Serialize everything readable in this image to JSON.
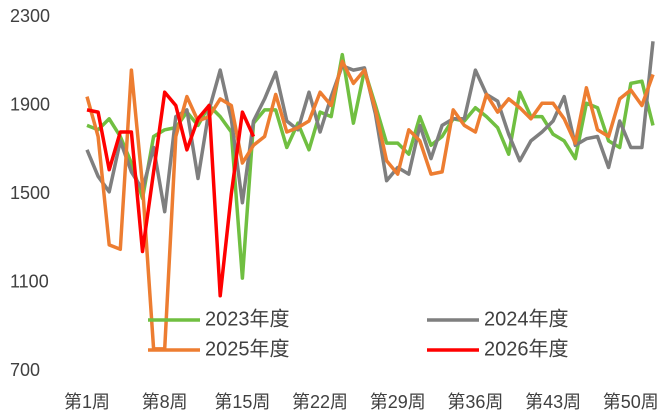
{
  "chart_data": {
    "type": "line",
    "categories": [
      "第1周",
      null,
      null,
      null,
      null,
      null,
      null,
      "第8周",
      null,
      null,
      null,
      null,
      null,
      null,
      "第15周",
      null,
      null,
      null,
      null,
      null,
      null,
      "第22周",
      null,
      null,
      null,
      null,
      null,
      null,
      "第29周",
      null,
      null,
      null,
      null,
      null,
      null,
      "第36周",
      null,
      null,
      null,
      null,
      null,
      null,
      "第43周",
      null,
      null,
      null,
      null,
      null,
      null,
      "第50周",
      null,
      null
    ],
    "ylim": [
      700,
      2300
    ],
    "yticks": [
      700,
      1100,
      1500,
      1900,
      2300
    ],
    "grid": false,
    "legend": "bottom",
    "series": [
      {
        "name": "2023年度",
        "color": "#70bf41",
        "values": [
          1810,
          1790,
          1840,
          1760,
          1640,
          1480,
          1760,
          1790,
          1800,
          1870,
          1810,
          1900,
          1850,
          1780,
          1120,
          1820,
          1880,
          1880,
          1710,
          1820,
          1700,
          1870,
          1850,
          2130,
          1820,
          2060,
          1900,
          1730,
          1730,
          1680,
          1850,
          1720,
          1760,
          1840,
          1830,
          1890,
          1850,
          1800,
          1680,
          1960,
          1850,
          1850,
          1770,
          1740,
          1660,
          1910,
          1890,
          1740,
          1710,
          2000,
          2010,
          1810
        ]
      },
      {
        "name": "2024年度",
        "color": "#7f7f7f",
        "values": [
          1700,
          1580,
          1510,
          1740,
          1600,
          1520,
          1710,
          1420,
          1850,
          1880,
          1570,
          1880,
          2060,
          1840,
          1460,
          1830,
          1930,
          2050,
          1830,
          1790,
          1960,
          1780,
          1940,
          2080,
          2060,
          2070,
          1860,
          1560,
          1620,
          1590,
          1810,
          1660,
          1810,
          1840,
          1840,
          2060,
          1950,
          1920,
          1770,
          1650,
          1740,
          1780,
          1830,
          1940,
          1720,
          1750,
          1760,
          1620,
          1830,
          1710,
          1710,
          2190
        ]
      },
      {
        "name": "2025年度",
        "color": "#ed7d31",
        "values": [
          1940,
          1760,
          1270,
          1250,
          2060,
          1540,
          800,
          800,
          1760,
          1940,
          1830,
          1850,
          1930,
          1900,
          1640,
          1720,
          1760,
          1950,
          1780,
          1800,
          1830,
          1960,
          1900,
          2100,
          2000,
          2060,
          1880,
          1650,
          1590,
          1790,
          1740,
          1590,
          1600,
          1880,
          1810,
          1780,
          1950,
          1870,
          1930,
          1890,
          1840,
          1910,
          1910,
          1840,
          1730,
          1980,
          1790,
          1760,
          1930,
          1970,
          1900,
          2040
        ]
      },
      {
        "name": "2026年度",
        "color": "#ff0000",
        "values": [
          1880,
          1870,
          1610,
          1780,
          1780,
          1240,
          1600,
          1960,
          1900,
          1700,
          1840,
          1900,
          1040,
          1500,
          1870,
          1760,
          null,
          null,
          null,
          null,
          null,
          null,
          null,
          null,
          null,
          null,
          null,
          null,
          null,
          null,
          null,
          null,
          null,
          null,
          null,
          null,
          null,
          null,
          null,
          null,
          null,
          null,
          null,
          null,
          null,
          null,
          null,
          null,
          null,
          null,
          null,
          null
        ]
      }
    ]
  }
}
